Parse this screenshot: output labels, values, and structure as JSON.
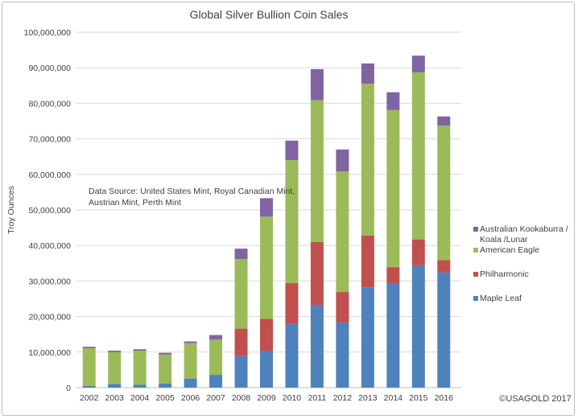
{
  "chart_data": {
    "type": "bar",
    "stacked": true,
    "title": "Global Silver Bullion Coin Sales",
    "xlabel": "",
    "ylabel": "Troy Ounces",
    "ylim": [
      0,
      100000000
    ],
    "yticks": [
      "0",
      "10,000,000",
      "20,000,000",
      "30,000,000",
      "40,000,000",
      "50,000,000",
      "60,000,000",
      "70,000,000",
      "80,000,000",
      "90,000,000",
      "100,000,000"
    ],
    "grid": true,
    "legend_position": "right",
    "categories": [
      "2002",
      "2003",
      "2004",
      "2005",
      "2006",
      "2007",
      "2008",
      "2009",
      "2010",
      "2011",
      "2012",
      "2013",
      "2014",
      "2015",
      "2016"
    ],
    "series": [
      {
        "name": "Maple Leaf",
        "color": "#4f81bd",
        "values": [
          500000,
          1000000,
          800000,
          1200000,
          2500000,
          3600000,
          8900000,
          10300000,
          17900000,
          23200000,
          18300000,
          28200000,
          29200000,
          34400000,
          32400000
        ]
      },
      {
        "name": "Philharmonic",
        "color": "#c0504d",
        "values": [
          0,
          0,
          0,
          0,
          0,
          0,
          7700000,
          9100000,
          11500000,
          17800000,
          8600000,
          14600000,
          4700000,
          7300000,
          3500000
        ]
      },
      {
        "name": "American Eagle",
        "color": "#9bbb59",
        "values": [
          10600000,
          9000000,
          9600000,
          8100000,
          10000000,
          9900000,
          19600000,
          28700000,
          34600000,
          39900000,
          33900000,
          42700000,
          44200000,
          47000000,
          37800000
        ]
      },
      {
        "name": "Australian Kookaburra / Koala /Lunar",
        "color": "#8064a2",
        "values": [
          400000,
          400000,
          400000,
          500000,
          500000,
          1300000,
          2900000,
          5200000,
          5500000,
          8700000,
          6200000,
          5700000,
          5000000,
          4700000,
          2600000
        ]
      }
    ],
    "annotations": [
      "Data Source: United States Mint, Royal Canadian Mint,",
      "Austrian Mint, Perth Mint"
    ],
    "copyright": "©USAGOLD 2017"
  }
}
